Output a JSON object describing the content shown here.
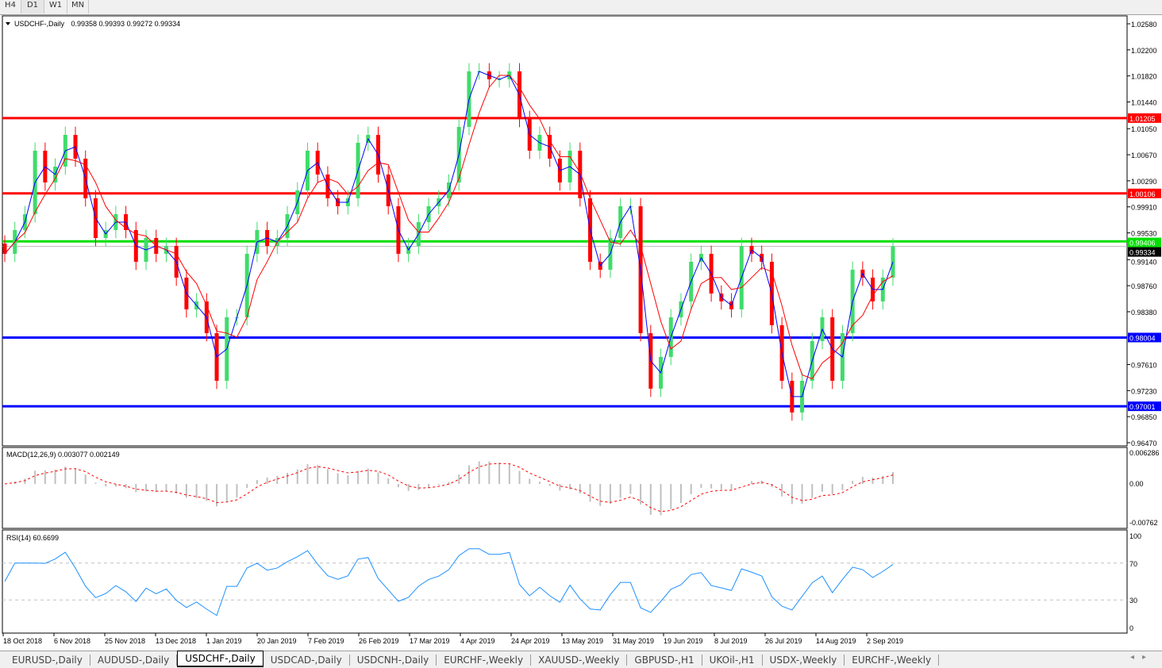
{
  "timeframes": [
    "H4",
    "D1",
    "W1",
    "MN"
  ],
  "active_timeframe": "D1",
  "chart_header": {
    "symbol": "USDCHF-,Daily",
    "ohlc": "0.99358 0.99393 0.99272 0.99334"
  },
  "bottom_tabs": [
    "EURUSD-,Daily",
    "AUDUSD-,Daily",
    "USDCHF-,Daily",
    "USDCAD-,Daily",
    "USDCNH-,Daily",
    "EURCHF-,Weekly",
    "XAUUSD-,Weekly",
    "GBPUSD-,H1",
    "UKOil-,H1",
    "USDX-,Weekly",
    "EURCHF-,Weekly"
  ],
  "active_tab": "USDCHF-,Daily",
  "colors": {
    "bull": "#3fdc6a",
    "bear": "#ff0000",
    "ma_fast": "#0000ff",
    "ma_slow": "#ff0000",
    "resistance": "#ff0000",
    "pivot": "#00e000",
    "support": "#0000ff",
    "macd_hist": "#c0c0c0",
    "macd_signal": "#ff0000",
    "rsi": "#1e90ff"
  },
  "chart_data": {
    "type": "candlestick",
    "symbol": "USDCHF",
    "timeframe": "Daily",
    "ylim": [
      0.9647,
      1.0258
    ],
    "price_ticks": [
      "1.02580",
      "1.02200",
      "1.01820",
      "1.01440",
      "1.01050",
      "1.00670",
      "1.00290",
      "0.99910",
      "0.99530",
      "0.99140",
      "0.98760",
      "0.98380",
      "0.97610",
      "0.97230",
      "0.96850",
      "0.96470"
    ],
    "date_ticks": [
      "18 Oct 2018",
      "6 Nov 2018",
      "25 Nov 2018",
      "13 Dec 2018",
      "1 Jan 2019",
      "20 Jan 2019",
      "7 Feb 2019",
      "26 Feb 2019",
      "17 Mar 2019",
      "4 Apr 2019",
      "24 Apr 2019",
      "13 May 2019",
      "31 May 2019",
      "19 Jun 2019",
      "8 Jul 2019",
      "26 Jul 2019",
      "14 Aug 2019",
      "2 Sep 2019"
    ],
    "closes": [
      0.99225,
      0.99572,
      0.99803,
      1.00729,
      1.00266,
      1.00497,
      1.0096,
      1.00613,
      1.00035,
      0.99456,
      0.99572,
      0.99803,
      0.99572,
      0.99109,
      0.99456,
      0.99225,
      0.9934,
      0.98878,
      0.98415,
      0.98531,
      0.98068,
      0.97373,
      0.98299,
      0.98299,
      0.99225,
      0.99572,
      0.9934,
      0.99456,
      0.99803,
      1.0015,
      1.00729,
      1.00382,
      1.00035,
      0.99919,
      1.00035,
      1.00844,
      1.0096,
      1.00382,
      0.99919,
      0.99225,
      0.9934,
      0.99687,
      0.99919,
      1.00035,
      1.00266,
      1.01076,
      1.01886,
      1.01886,
      1.0177,
      1.0177,
      1.01886,
      1.01192,
      1.00729,
      1.0096,
      1.00613,
      1.00266,
      1.00729,
      1.00035,
      0.99109,
      0.98993,
      0.99456,
      0.99919,
      0.99919,
      0.98068,
      0.97258,
      0.97721,
      0.98299,
      0.98531,
      0.99109,
      0.99225,
      0.98646,
      0.98531,
      0.98415,
      0.9934,
      0.99225,
      0.99109,
      0.98183,
      0.97373,
      0.96911,
      0.97373,
      0.97952,
      0.98299,
      0.97373,
      0.98068,
      0.98993,
      0.98878,
      0.98531,
      0.98878,
      0.99334
    ],
    "horizontal_lines": [
      {
        "price": 1.01205,
        "label": "1.01205",
        "role": "resistance"
      },
      {
        "price": 1.00106,
        "label": "1.00106",
        "role": "resistance"
      },
      {
        "price": 0.99406,
        "label": "0.99406",
        "role": "pivot"
      },
      {
        "price": 0.98004,
        "label": "0.98004",
        "role": "support"
      },
      {
        "price": 0.97001,
        "label": "0.97001",
        "role": "support"
      }
    ],
    "current_price": {
      "price": 0.99334,
      "label": "0.99334"
    },
    "macd": {
      "title": "MACD(12,26,9) 0.003077 0.002149",
      "ylim": [
        -0.00762,
        0.006286
      ],
      "ticks": [
        "0.006286",
        "0.00",
        "-0.00762"
      ]
    },
    "rsi": {
      "title": "RSI(14) 60.6699",
      "ylim": [
        0,
        100
      ],
      "ticks": [
        "100",
        "70",
        "30",
        "0"
      ],
      "levels": [
        70,
        30
      ]
    }
  }
}
